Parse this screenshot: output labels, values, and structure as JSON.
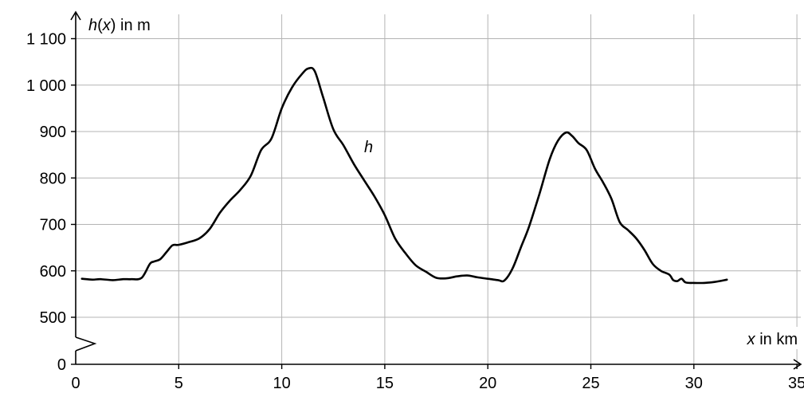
{
  "chart_data": {
    "type": "line",
    "xlabel_var": "x",
    "xlabel_unit": " in km",
    "ylabel_prefix": "h(",
    "ylabel_var": "x",
    "ylabel_suffix": ") in m",
    "x_ticks": [
      0,
      5,
      10,
      15,
      20,
      25,
      30,
      35
    ],
    "x_tick_labels": [
      "0",
      "5",
      "10",
      "15",
      "20",
      "25",
      "30",
      "35"
    ],
    "y_ticks": [
      0,
      500,
      600,
      700,
      800,
      900,
      1000,
      1100
    ],
    "y_tick_labels": [
      "0",
      "500",
      "600",
      "700",
      "800",
      "900",
      "1 000",
      "1 100"
    ],
    "y_axis_break": [
      0,
      500
    ],
    "grid": true,
    "series": [
      {
        "name": "h",
        "x": [
          0.3,
          0.8,
          1.2,
          1.8,
          2.3,
          2.7,
          3.2,
          3.6,
          3.8,
          4.1,
          4.4,
          4.7,
          5.0,
          5.5,
          6.0,
          6.5,
          7.0,
          7.5,
          8.0,
          8.5,
          9.0,
          9.5,
          10.0,
          10.5,
          11.0,
          11.3,
          11.6,
          12.0,
          12.5,
          13.0,
          13.5,
          14.0,
          14.5,
          15.0,
          15.5,
          16.0,
          16.5,
          17.0,
          17.5,
          18.0,
          18.5,
          19.0,
          19.5,
          20.0,
          20.5,
          20.8,
          21.2,
          21.6,
          22.0,
          22.5,
          23.0,
          23.4,
          23.8,
          24.1,
          24.4,
          24.8,
          25.2,
          25.6,
          26.0,
          26.4,
          26.8,
          27.2,
          27.6,
          28.0,
          28.4,
          28.8,
          29.0,
          29.2,
          29.4,
          29.6,
          30.0,
          30.5,
          31.0,
          31.6
        ],
        "y": [
          583,
          581,
          582,
          580,
          582,
          582,
          585,
          615,
          620,
          625,
          640,
          655,
          656,
          662,
          670,
          690,
          725,
          752,
          775,
          805,
          860,
          885,
          950,
          995,
          1025,
          1036,
          1030,
          975,
          905,
          870,
          830,
          795,
          760,
          720,
          670,
          638,
          612,
          598,
          585,
          584,
          588,
          590,
          586,
          583,
          580,
          579,
          605,
          650,
          695,
          765,
          840,
          880,
          898,
          890,
          875,
          860,
          820,
          790,
          755,
          705,
          688,
          670,
          645,
          615,
          600,
          592,
          580,
          578,
          583,
          575,
          574,
          574,
          576,
          581
        ]
      }
    ],
    "series_label": "h",
    "series_label_x": 14.0,
    "series_label_y": 855
  }
}
